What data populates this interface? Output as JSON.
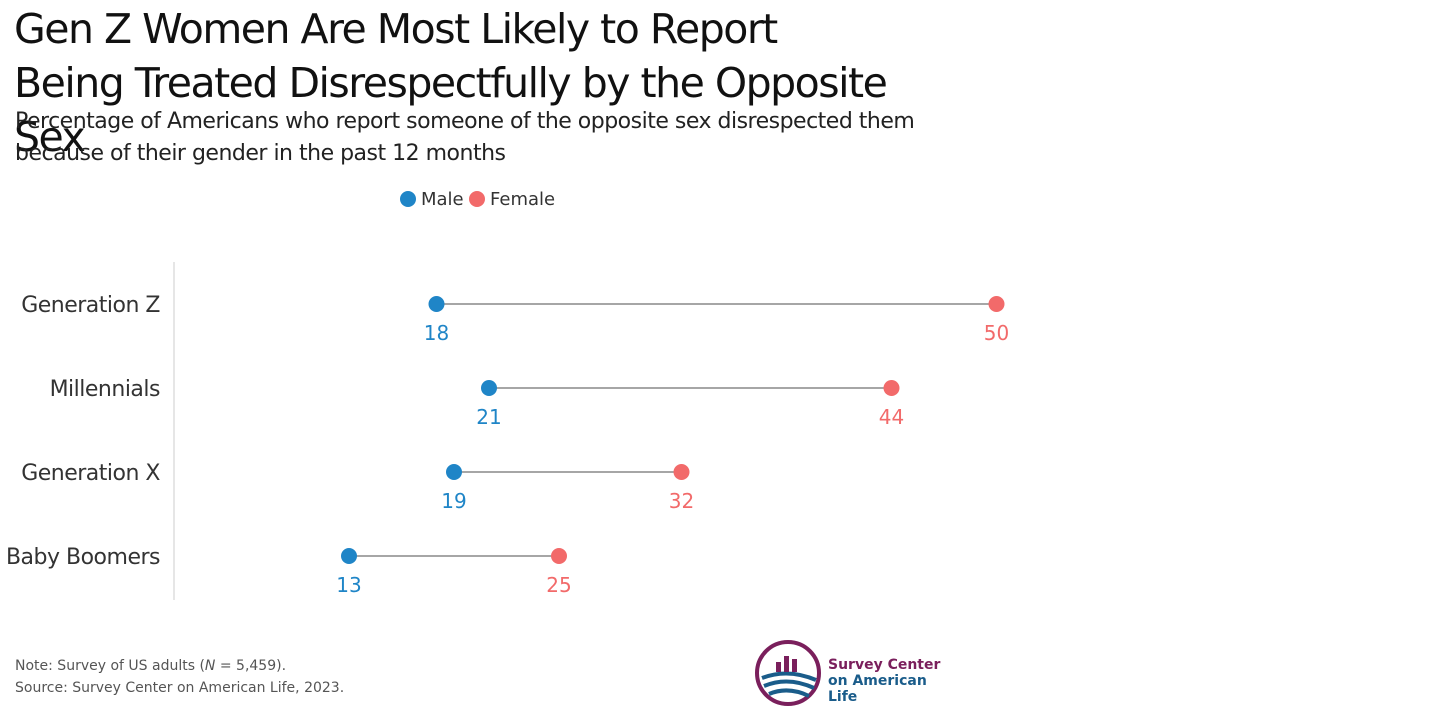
{
  "title": "Gen Z Women Are Most Likely to Report Being Treated Disrespectfully by the Opposite Sex",
  "subtitle": "Percentage of Americans who report someone of the opposite sex disrespected them because of their gender in the past 12 months",
  "notes": {
    "note_prefix": "Note: Survey of US adults (",
    "note_n": "N",
    "note_suffix": " = 5,459).",
    "source": "Source: Survey Center on American Life, 2023."
  },
  "logo": {
    "line1": "Survey Center",
    "line2": "on American Life"
  },
  "colors": {
    "male": "#1f85c7",
    "female": "#f26a6a",
    "connector": "#888888",
    "axis": "#dddddd"
  },
  "chart_data": {
    "type": "dumbbell",
    "title": "Gen Z Women Are Most Likely to Report Being Treated Disrespectfully by the Opposite Sex",
    "categories": [
      "Generation Z",
      "Millennials",
      "Generation X",
      "Baby Boomers"
    ],
    "series": [
      {
        "name": "Male",
        "values": [
          18,
          21,
          19,
          13
        ]
      },
      {
        "name": "Female",
        "values": [
          50,
          44,
          32,
          25
        ]
      }
    ],
    "legend_position": "top-center",
    "grid": false
  }
}
